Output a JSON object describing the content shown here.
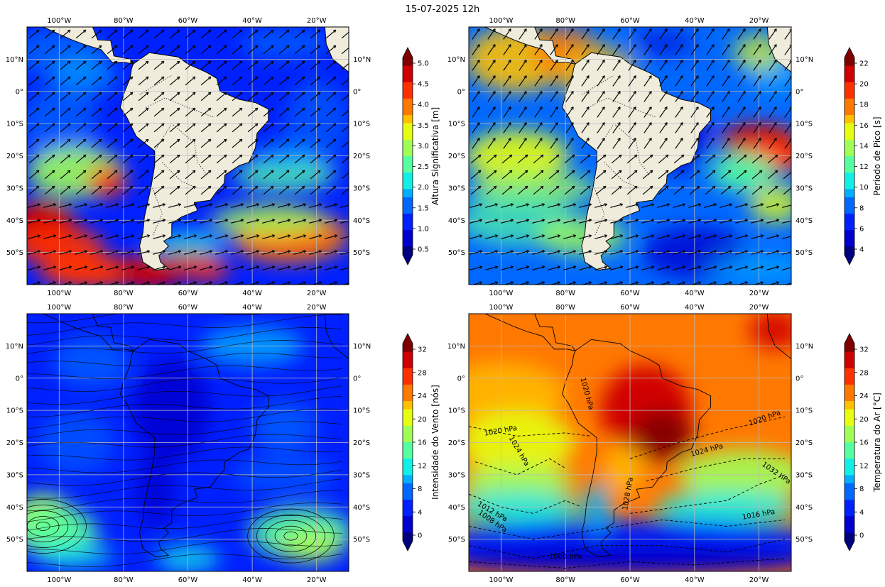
{
  "title": "15-07-2025 12h",
  "lon_ticks": [
    "100°W",
    "80°W",
    "60°W",
    "40°W",
    "20°W"
  ],
  "lat_ticks": [
    "10°N",
    "0°",
    "10°S",
    "20°S",
    "30°S",
    "40°S",
    "50°S"
  ],
  "panels": [
    {
      "id": "wave-height",
      "colorbar": {
        "label": "Altura Significativa [m]",
        "ticks": [
          "0.5",
          "1.0",
          "1.5",
          "2.0",
          "2.5",
          "3.0",
          "3.5",
          "4.0",
          "4.5",
          "5.0"
        ]
      },
      "overlay": "arrows"
    },
    {
      "id": "peak-period",
      "colorbar": {
        "label": "Período de Pico [s]",
        "ticks": [
          "4",
          "6",
          "8",
          "10",
          "12",
          "14",
          "16",
          "18",
          "20",
          "22"
        ]
      },
      "overlay": "arrows"
    },
    {
      "id": "wind-speed",
      "colorbar": {
        "label": "Intensidade do Vento [nós]",
        "ticks": [
          "0",
          "4",
          "8",
          "12",
          "16",
          "20",
          "24",
          "28",
          "32"
        ]
      },
      "overlay": "streamlines"
    },
    {
      "id": "air-temperature",
      "colorbar": {
        "label": "Temperatura do Ar [°C]",
        "ticks": [
          "0",
          "4",
          "8",
          "12",
          "16",
          "20",
          "24",
          "28",
          "32"
        ]
      },
      "overlay": "isobars",
      "isobar_labels": [
        "1020 hPa",
        "1020 hPa",
        "1020 hPa",
        "1024 hPa",
        "1024 hPa",
        "1032 hPa",
        "1028 hPa",
        "1016 hPa",
        "1012 hPa",
        "1008 hPa",
        "1000 hPa"
      ]
    }
  ],
  "colors": {
    "land": "#efecdc",
    "jet": [
      "#00007f",
      "#0000d0",
      "#0020ff",
      "#0068ff",
      "#00b0ff",
      "#10f0e6",
      "#56ffa0",
      "#a0ff56",
      "#e6ff10",
      "#ffc000",
      "#ff7800",
      "#ff3000",
      "#d00000",
      "#7f0000"
    ]
  }
}
